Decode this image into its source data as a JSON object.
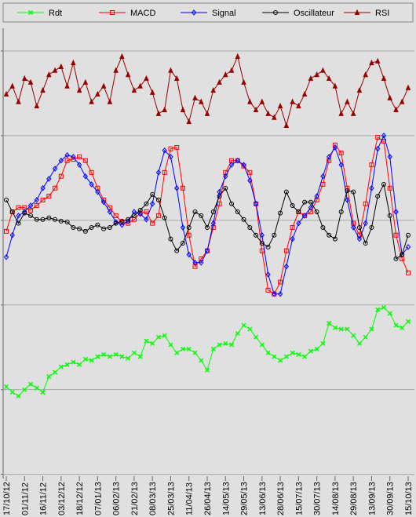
{
  "chart_data": {
    "type": "line",
    "categories": [
      "17/10/12",
      null,
      null,
      "01/11/12",
      null,
      null,
      "16/11/12",
      null,
      null,
      "03/12/12",
      null,
      null,
      "18/12/12",
      null,
      null,
      "07/01/13",
      null,
      null,
      "06/02/13",
      null,
      null,
      "21/02/13",
      null,
      null,
      "08/03/13",
      null,
      null,
      "25/03/13",
      null,
      null,
      "11/04/13",
      null,
      null,
      "26/04/13",
      null,
      null,
      "14/05/13",
      null,
      null,
      "29/05/13",
      null,
      null,
      "13/06/13",
      null,
      null,
      "28/06/13",
      null,
      null,
      "15/07/13",
      null,
      null,
      "30/07/13",
      null,
      null,
      "14/08/13",
      null,
      null,
      "29/08/13",
      null,
      null,
      "13/09/13",
      null,
      null,
      "30/09/13",
      null,
      null,
      "15/10/13"
    ],
    "series": [
      {
        "name": "Rdt",
        "color": "#00ff00",
        "marker": "x",
        "values": [
          20.7,
          19.4,
          18.5,
          20.0,
          21.3,
          20.4,
          19.4,
          23.1,
          24.1,
          25.4,
          25.9,
          26.5,
          25.9,
          27.2,
          26.9,
          27.8,
          28.3,
          27.8,
          28.3,
          27.8,
          27.4,
          28.7,
          27.8,
          31.5,
          30.9,
          32.4,
          32.8,
          30.6,
          28.7,
          29.6,
          29.6,
          28.7,
          26.9,
          24.6,
          29.6,
          30.6,
          30.9,
          30.6,
          33.3,
          35.2,
          34.3,
          32.4,
          30.6,
          28.7,
          27.8,
          26.9,
          27.8,
          28.7,
          28.3,
          27.8,
          29.1,
          29.6,
          30.9,
          35.7,
          34.6,
          34.3,
          34.3,
          32.8,
          30.9,
          32.4,
          34.3,
          38.9,
          39.4,
          38.0,
          35.2,
          34.6,
          36.1
        ]
      },
      {
        "name": "MACD",
        "color": "#ff0000",
        "marker": "square",
        "values": [
          57.4,
          62.0,
          63.0,
          63.0,
          62.4,
          63.5,
          64.8,
          65.7,
          67.6,
          70.4,
          74.1,
          74.4,
          75.0,
          74.1,
          71.3,
          67.6,
          64.8,
          63.0,
          61.1,
          59.6,
          59.3,
          60.2,
          61.7,
          62.0,
          59.3,
          61.1,
          71.3,
          76.9,
          77.2,
          67.6,
          56.5,
          49.1,
          50.9,
          52.8,
          58.3,
          63.9,
          71.3,
          74.1,
          74.1,
          72.8,
          71.3,
          63.9,
          52.8,
          43.5,
          42.6,
          45.4,
          52.8,
          58.3,
          62.0,
          61.1,
          62.0,
          64.8,
          68.5,
          74.1,
          77.8,
          75.9,
          67.6,
          59.3,
          56.5,
          63.9,
          73.1,
          79.6,
          78.7,
          67.6,
          56.5,
          50.9,
          47.6
        ]
      },
      {
        "name": "Signal",
        "color": "#0000ff",
        "marker": "diamond",
        "values": [
          51.3,
          56.5,
          61.1,
          62.0,
          63.5,
          64.8,
          67.6,
          69.8,
          72.2,
          74.1,
          75.4,
          75.0,
          73.1,
          70.4,
          68.5,
          66.7,
          64.3,
          62.0,
          59.6,
          58.9,
          59.8,
          62.0,
          61.5,
          60.2,
          63.9,
          71.3,
          76.5,
          75.0,
          67.6,
          58.3,
          51.9,
          50.0,
          50.0,
          52.8,
          59.3,
          66.7,
          70.4,
          73.1,
          74.1,
          73.1,
          69.4,
          63.9,
          56.5,
          47.2,
          42.6,
          42.6,
          49.1,
          55.6,
          59.3,
          61.1,
          63.0,
          65.7,
          70.4,
          75.0,
          77.2,
          73.1,
          64.8,
          58.3,
          55.6,
          59.3,
          67.6,
          76.9,
          80.0,
          75.0,
          62.0,
          51.9,
          53.7
        ]
      },
      {
        "name": "Oscillateur",
        "color": "#000000",
        "marker": "circle",
        "values": [
          64.8,
          62.0,
          59.3,
          61.7,
          61.1,
          60.2,
          60.2,
          60.6,
          60.2,
          59.8,
          59.6,
          58.3,
          58.0,
          57.4,
          58.3,
          58.9,
          58.0,
          58.3,
          59.3,
          59.8,
          60.2,
          61.1,
          62.4,
          63.9,
          66.1,
          64.8,
          60.6,
          55.6,
          52.8,
          54.6,
          58.3,
          62.0,
          61.1,
          58.3,
          62.0,
          65.7,
          67.6,
          63.9,
          62.0,
          60.2,
          58.3,
          56.5,
          54.6,
          53.7,
          56.5,
          61.7,
          66.7,
          63.5,
          62.0,
          64.3,
          64.3,
          62.0,
          58.3,
          56.5,
          55.6,
          62.0,
          67.0,
          66.7,
          58.3,
          54.6,
          58.3,
          65.7,
          68.5,
          61.1,
          50.9,
          51.9,
          56.5
        ]
      },
      {
        "name": "RSI",
        "color": "#990000",
        "marker": "triangle",
        "values": [
          89.8,
          91.7,
          88.0,
          93.5,
          92.6,
          87.0,
          90.7,
          94.4,
          95.4,
          96.3,
          91.7,
          97.2,
          90.7,
          92.6,
          88.0,
          89.8,
          91.7,
          88.0,
          95.4,
          98.7,
          94.4,
          90.7,
          91.7,
          93.5,
          90.2,
          85.2,
          86.1,
          95.4,
          93.5,
          86.1,
          83.3,
          88.9,
          88.0,
          85.2,
          90.7,
          92.6,
          94.4,
          95.4,
          98.7,
          92.6,
          88.0,
          86.1,
          88.0,
          85.2,
          84.3,
          87.0,
          82.4,
          88.0,
          87.0,
          89.8,
          93.5,
          94.4,
          95.4,
          93.5,
          91.7,
          85.2,
          88.0,
          85.2,
          90.7,
          94.4,
          97.2,
          97.6,
          93.5,
          88.9,
          86.1,
          88.0,
          91.3
        ]
      }
    ],
    "ylim": [
      -1,
      105
    ],
    "yticks": [
      0,
      20,
      40,
      60,
      80,
      100
    ],
    "grid": true,
    "legend": "top"
  }
}
